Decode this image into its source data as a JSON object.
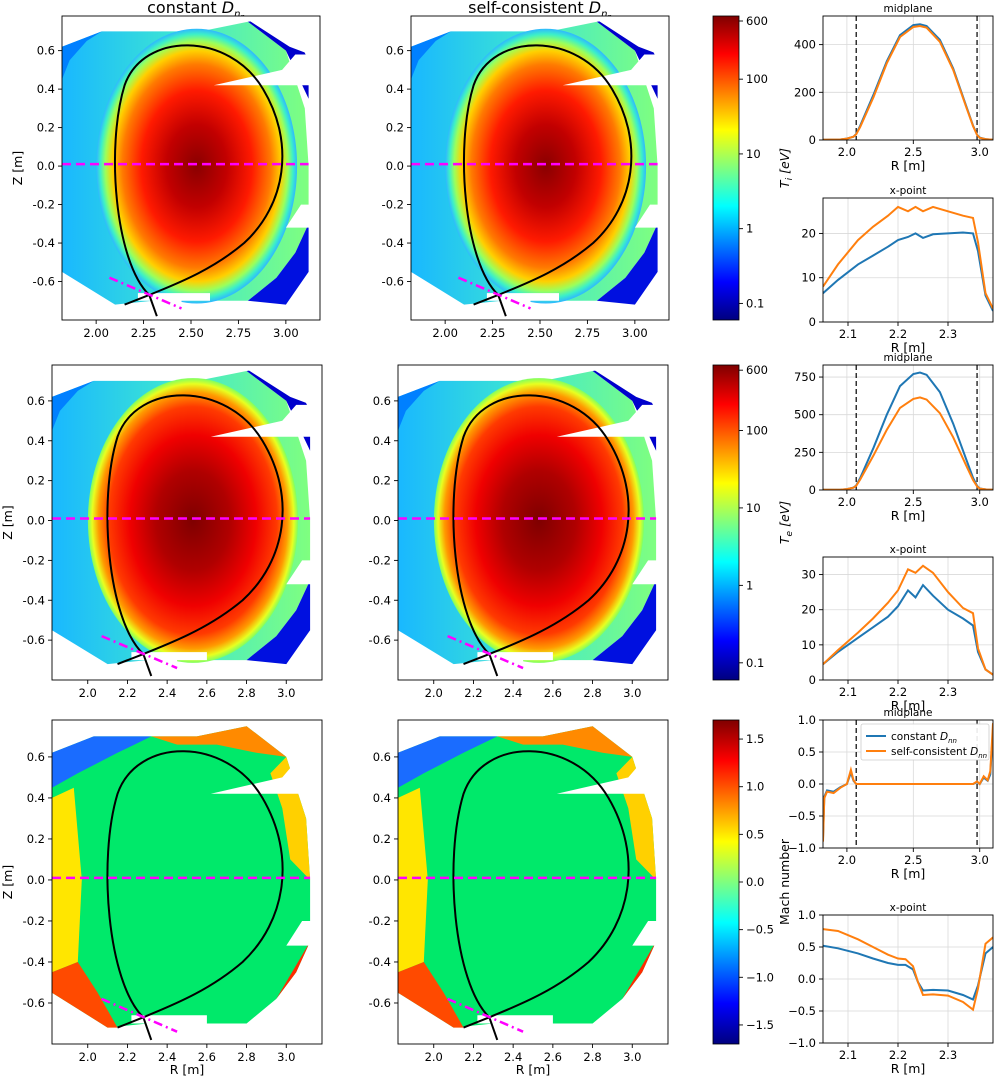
{
  "column_titles": [
    "constant D_nn",
    "self-consistent D_nn"
  ],
  "colors": {
    "constant": "#1f77b4",
    "selfconsistent": "#ff7f0e",
    "separatrix": "#000000",
    "cut_lines": "#ff00ff",
    "grid": "#d9d9d9",
    "cmap": [
      "#00007f",
      "#0000ff",
      "#007fff",
      "#00ffff",
      "#7fff7f",
      "#ffff00",
      "#ff7f00",
      "#ff0000",
      "#7f0000"
    ]
  },
  "chart_data": [
    {
      "type": "heatmap",
      "id": "ti-constant",
      "quantity": "Ti",
      "title": "constant D_nn",
      "xlabel": "",
      "ylabel": "Z [m]",
      "xlim": [
        1.82,
        3.18
      ],
      "ylim": [
        -0.8,
        0.78
      ],
      "xticks": [
        2.0,
        2.25,
        2.5,
        2.75,
        3.0
      ],
      "xticklabels": [
        "2.00",
        "2.25",
        "2.50",
        "2.75",
        "3.00"
      ],
      "yticks": [
        0.6,
        0.4,
        0.2,
        0.0,
        -0.2,
        -0.4,
        -0.6
      ],
      "yticklabels": [
        "0.6",
        "0.4",
        "0.2",
        "0.0",
        "-0.2",
        "-0.4",
        "-0.6"
      ]
    },
    {
      "type": "heatmap",
      "id": "ti-selfconsistent",
      "quantity": "Ti",
      "title": "self-consistent D_nn",
      "xlim": [
        1.82,
        3.18
      ],
      "ylim": [
        -0.8,
        0.78
      ],
      "xticks": [
        2.0,
        2.25,
        2.5,
        2.75,
        3.0
      ],
      "xticklabels": [
        "2.00",
        "2.25",
        "2.50",
        "2.75",
        "3.00"
      ],
      "yticks": [
        0.6,
        0.4,
        0.2,
        0.0,
        -0.2,
        -0.4,
        -0.6
      ],
      "yticklabels": [
        "0.6",
        "0.4",
        "0.2",
        "0.0",
        "-0.2",
        "-0.4",
        "-0.6"
      ]
    },
    {
      "type": "colorbar",
      "id": "ti-colorbar",
      "label": "Ti [eV]",
      "label_main": "T",
      "label_sub": "i",
      "label_unit": " [eV]",
      "scale": "log",
      "range": [
        0.06,
        700
      ],
      "ticks": [
        600,
        100,
        10,
        1,
        0.1
      ],
      "ticklabels": [
        "600",
        "100",
        "10",
        "1",
        "0.1"
      ]
    },
    {
      "type": "line",
      "id": "ti-midplane",
      "title": "midplane",
      "xlabel": "R [m]",
      "xlim": [
        1.82,
        3.1
      ],
      "ylim": [
        0,
        520
      ],
      "xticks": [
        2.0,
        2.5,
        3.0
      ],
      "xticklabels": [
        "2.0",
        "2.5",
        "3.0"
      ],
      "yticks": [
        0,
        200,
        400
      ],
      "yticklabels": [
        "0",
        "200",
        "400"
      ],
      "vlines": [
        2.07,
        2.98
      ],
      "series": [
        {
          "name": "constant D_nn",
          "x": [
            1.82,
            1.95,
            2.0,
            2.05,
            2.07,
            2.1,
            2.2,
            2.3,
            2.4,
            2.5,
            2.55,
            2.6,
            2.7,
            2.8,
            2.9,
            2.95,
            2.98,
            3.0,
            3.05,
            3.1
          ],
          "y": [
            1,
            2,
            6,
            14,
            25,
            60,
            190,
            330,
            440,
            482,
            485,
            478,
            420,
            300,
            140,
            60,
            22,
            10,
            3,
            1
          ]
        },
        {
          "name": "self-consistent D_nn",
          "x": [
            1.82,
            1.95,
            2.0,
            2.05,
            2.07,
            2.1,
            2.2,
            2.3,
            2.4,
            2.5,
            2.55,
            2.6,
            2.7,
            2.8,
            2.9,
            2.95,
            2.98,
            3.0,
            3.05,
            3.1
          ],
          "y": [
            1,
            2,
            6,
            14,
            24,
            55,
            180,
            322,
            432,
            474,
            478,
            471,
            412,
            294,
            136,
            58,
            21,
            9,
            3,
            1
          ]
        }
      ]
    },
    {
      "type": "line",
      "id": "ti-xpoint",
      "title": "x-point",
      "xlabel": "R [m]",
      "xlim": [
        2.05,
        2.39
      ],
      "ylim": [
        0,
        28
      ],
      "xticks": [
        2.1,
        2.2,
        2.3
      ],
      "xticklabels": [
        "2.1",
        "2.2",
        "2.3"
      ],
      "yticks": [
        0,
        10,
        20
      ],
      "yticklabels": [
        "0",
        "10",
        "20"
      ],
      "series": [
        {
          "name": "constant D_nn",
          "x": [
            2.05,
            2.08,
            2.12,
            2.15,
            2.18,
            2.2,
            2.22,
            2.235,
            2.25,
            2.27,
            2.3,
            2.33,
            2.35,
            2.36,
            2.375,
            2.39
          ],
          "y": [
            6.5,
            9.5,
            13.0,
            15.0,
            17.0,
            18.5,
            19.2,
            20.0,
            19.0,
            19.8,
            20.0,
            20.2,
            20.0,
            16.0,
            6.0,
            2.5
          ]
        },
        {
          "name": "self-consistent D_nn",
          "x": [
            2.05,
            2.08,
            2.12,
            2.15,
            2.18,
            2.2,
            2.22,
            2.235,
            2.25,
            2.27,
            2.3,
            2.33,
            2.35,
            2.36,
            2.375,
            2.39
          ],
          "y": [
            8.0,
            13.0,
            18.5,
            21.5,
            24.0,
            26.0,
            25.0,
            26.0,
            25.0,
            26.0,
            25.0,
            24.0,
            23.5,
            18.0,
            6.5,
            3.0
          ]
        }
      ]
    },
    {
      "type": "heatmap",
      "id": "te-constant",
      "quantity": "Te",
      "ylabel": "Z [m]",
      "xlim": [
        1.82,
        3.18
      ],
      "ylim": [
        -0.8,
        0.78
      ],
      "xticks": [
        2.0,
        2.2,
        2.4,
        2.6,
        2.8,
        3.0
      ],
      "xticklabels": [
        "2.0",
        "2.2",
        "2.4",
        "2.6",
        "2.8",
        "3.0"
      ],
      "yticks": [
        0.6,
        0.4,
        0.2,
        0.0,
        -0.2,
        -0.4,
        -0.6
      ],
      "yticklabels": [
        "0.6",
        "0.4",
        "0.2",
        "0.0",
        "-0.2",
        "-0.4",
        "-0.6"
      ]
    },
    {
      "type": "heatmap",
      "id": "te-selfconsistent",
      "quantity": "Te",
      "xlim": [
        1.82,
        3.18
      ],
      "ylim": [
        -0.8,
        0.78
      ],
      "xticks": [
        2.0,
        2.2,
        2.4,
        2.6,
        2.8,
        3.0
      ],
      "xticklabels": [
        "2.0",
        "2.2",
        "2.4",
        "2.6",
        "2.8",
        "3.0"
      ],
      "yticks": [
        0.6,
        0.4,
        0.2,
        0.0,
        -0.2,
        -0.4,
        -0.6
      ],
      "yticklabels": [
        "0.6",
        "0.4",
        "0.2",
        "0.0",
        "-0.2",
        "-0.4",
        "-0.6"
      ]
    },
    {
      "type": "colorbar",
      "id": "te-colorbar",
      "label": "Te [eV]",
      "label_main": "T",
      "label_sub": "e",
      "label_unit": " [eV]",
      "scale": "log",
      "range": [
        0.06,
        700
      ],
      "ticks": [
        600,
        100,
        10,
        1,
        0.1
      ],
      "ticklabels": [
        "600",
        "100",
        "10",
        "1",
        "0.1"
      ]
    },
    {
      "type": "line",
      "id": "te-midplane",
      "title": "midplane",
      "xlabel": "R [m]",
      "xlim": [
        1.82,
        3.1
      ],
      "ylim": [
        0,
        830
      ],
      "xticks": [
        2.0,
        2.5,
        3.0
      ],
      "xticklabels": [
        "2.0",
        "2.5",
        "3.0"
      ],
      "yticks": [
        0,
        250,
        500,
        750
      ],
      "yticklabels": [
        "0",
        "250",
        "500",
        "750"
      ],
      "vlines": [
        2.07,
        2.98
      ],
      "series": [
        {
          "name": "constant D_nn",
          "x": [
            1.82,
            1.95,
            2.0,
            2.05,
            2.07,
            2.1,
            2.2,
            2.3,
            2.4,
            2.5,
            2.55,
            2.6,
            2.7,
            2.8,
            2.9,
            2.95,
            2.98,
            3.0,
            3.05,
            3.1
          ],
          "y": [
            1,
            2,
            6,
            16,
            30,
            80,
            280,
            500,
            690,
            770,
            780,
            765,
            650,
            440,
            200,
            80,
            28,
            10,
            3,
            1
          ]
        },
        {
          "name": "self-consistent D_nn",
          "x": [
            1.82,
            1.95,
            2.0,
            2.05,
            2.07,
            2.1,
            2.2,
            2.3,
            2.4,
            2.5,
            2.55,
            2.6,
            2.7,
            2.8,
            2.9,
            2.95,
            2.98,
            3.0,
            3.05,
            3.1
          ],
          "y": [
            1,
            2,
            6,
            15,
            28,
            70,
            230,
            400,
            545,
            605,
            615,
            600,
            510,
            350,
            160,
            65,
            24,
            9,
            3,
            1
          ]
        }
      ]
    },
    {
      "type": "line",
      "id": "te-xpoint",
      "title": "x-point",
      "xlabel": "R [m]",
      "xlim": [
        2.05,
        2.39
      ],
      "ylim": [
        0,
        35
      ],
      "xticks": [
        2.1,
        2.2,
        2.3
      ],
      "xticklabels": [
        "2.1",
        "2.2",
        "2.3"
      ],
      "yticks": [
        0,
        10,
        20,
        30
      ],
      "yticklabels": [
        "0",
        "10",
        "20",
        "30"
      ],
      "series": [
        {
          "name": "constant D_nn",
          "x": [
            2.05,
            2.08,
            2.12,
            2.15,
            2.18,
            2.2,
            2.22,
            2.235,
            2.25,
            2.27,
            2.3,
            2.33,
            2.35,
            2.36,
            2.375,
            2.39
          ],
          "y": [
            4.5,
            8.0,
            12.0,
            15.0,
            18.0,
            21.0,
            25.5,
            23.5,
            27.0,
            24.0,
            20.0,
            17.5,
            15.5,
            8.0,
            3.0,
            1.5
          ]
        },
        {
          "name": "self-consistent D_nn",
          "x": [
            2.05,
            2.08,
            2.12,
            2.15,
            2.18,
            2.2,
            2.22,
            2.235,
            2.25,
            2.27,
            2.3,
            2.33,
            2.35,
            2.36,
            2.375,
            2.39
          ],
          "y": [
            4.5,
            8.5,
            13.5,
            17.5,
            22.0,
            25.5,
            31.5,
            30.5,
            32.5,
            30.5,
            25.0,
            20.5,
            19.0,
            9.0,
            3.0,
            1.5
          ]
        }
      ]
    },
    {
      "type": "heatmap",
      "id": "mach-constant",
      "quantity": "Mach",
      "xlabel": "R [m]",
      "ylabel": "Z [m]",
      "xlim": [
        1.82,
        3.18
      ],
      "ylim": [
        -0.8,
        0.78
      ],
      "xticks": [
        2.0,
        2.2,
        2.4,
        2.6,
        2.8,
        3.0
      ],
      "xticklabels": [
        "2.0",
        "2.2",
        "2.4",
        "2.6",
        "2.8",
        "3.0"
      ],
      "yticks": [
        0.6,
        0.4,
        0.2,
        0.0,
        -0.2,
        -0.4,
        -0.6
      ],
      "yticklabels": [
        "0.6",
        "0.4",
        "0.2",
        "0.0",
        "-0.2",
        "-0.4",
        "-0.6"
      ]
    },
    {
      "type": "heatmap",
      "id": "mach-selfconsistent",
      "quantity": "Mach",
      "xlabel": "R [m]",
      "xlim": [
        1.82,
        3.18
      ],
      "ylim": [
        -0.8,
        0.78
      ],
      "xticks": [
        2.0,
        2.2,
        2.4,
        2.6,
        2.8,
        3.0
      ],
      "xticklabels": [
        "2.0",
        "2.2",
        "2.4",
        "2.6",
        "2.8",
        "3.0"
      ],
      "yticks": [
        0.6,
        0.4,
        0.2,
        0.0,
        -0.2,
        -0.4,
        -0.6
      ],
      "yticklabels": [
        "0.6",
        "0.4",
        "0.2",
        "0.0",
        "-0.2",
        "-0.4",
        "-0.6"
      ]
    },
    {
      "type": "colorbar",
      "id": "mach-colorbar",
      "label": "Mach number",
      "scale": "linear",
      "range": [
        -1.7,
        1.7
      ],
      "ticks": [
        1.5,
        1.0,
        0.5,
        0.0,
        -0.5,
        -1.0,
        -1.5
      ],
      "ticklabels": [
        "1.5",
        "1.0",
        "0.5",
        "0.0",
        "−0.5",
        "−1.0",
        "−1.5"
      ]
    },
    {
      "type": "line",
      "id": "mach-midplane",
      "title": "midplane",
      "xlabel": "R [m]",
      "xlim": [
        1.82,
        3.1
      ],
      "ylim": [
        -1.0,
        1.0
      ],
      "xticks": [
        2.0,
        2.5,
        3.0
      ],
      "xticklabels": [
        "2.0",
        "2.5",
        "3.0"
      ],
      "yticks": [
        1.0,
        0.5,
        0.0,
        -0.5,
        -1.0
      ],
      "yticklabels": [
        "1.0",
        "0.5",
        "0.0",
        "−0.5",
        "−1.0"
      ],
      "vlines": [
        2.07,
        2.98
      ],
      "legend": "top-right",
      "legend_entries": [
        "constant D_nn",
        "self-consistent D_nn"
      ],
      "series": [
        {
          "name": "constant D_nn",
          "x": [
            1.82,
            1.83,
            1.85,
            1.9,
            1.95,
            2.0,
            2.03,
            2.05,
            2.07,
            2.1,
            2.2,
            2.5,
            2.8,
            2.95,
            2.98,
            3.0,
            3.03,
            3.06,
            3.08,
            3.1
          ],
          "y": [
            -0.85,
            -0.2,
            -0.1,
            -0.12,
            -0.05,
            0.0,
            0.18,
            0.05,
            0.0,
            0.0,
            0.0,
            0.0,
            0.0,
            0.0,
            0.03,
            0.0,
            0.1,
            0.05,
            0.15,
            0.85
          ]
        },
        {
          "name": "self-consistent D_nn",
          "x": [
            1.82,
            1.83,
            1.85,
            1.9,
            1.95,
            2.0,
            2.03,
            2.05,
            2.07,
            2.1,
            2.2,
            2.5,
            2.8,
            2.95,
            2.98,
            3.0,
            3.03,
            3.06,
            3.08,
            3.1
          ],
          "y": [
            -0.9,
            -0.22,
            -0.12,
            -0.14,
            -0.06,
            0.0,
            0.22,
            0.06,
            0.0,
            0.0,
            0.0,
            0.0,
            0.0,
            0.0,
            0.04,
            0.0,
            0.12,
            0.06,
            0.2,
            0.95
          ]
        }
      ]
    },
    {
      "type": "line",
      "id": "mach-xpoint",
      "title": "x-point",
      "xlabel": "R [m]",
      "xlim": [
        2.05,
        2.39
      ],
      "ylim": [
        -1.0,
        1.0
      ],
      "xticks": [
        2.1,
        2.2,
        2.3
      ],
      "xticklabels": [
        "2.1",
        "2.2",
        "2.3"
      ],
      "yticks": [
        1.0,
        0.5,
        0.0,
        -0.5,
        -1.0
      ],
      "yticklabels": [
        "1.0",
        "0.5",
        "0.0",
        "−0.5",
        "−1.0"
      ],
      "series": [
        {
          "name": "constant D_nn",
          "x": [
            2.05,
            2.08,
            2.12,
            2.15,
            2.18,
            2.2,
            2.215,
            2.23,
            2.24,
            2.25,
            2.27,
            2.3,
            2.33,
            2.35,
            2.36,
            2.375,
            2.39
          ],
          "y": [
            0.52,
            0.48,
            0.4,
            0.32,
            0.25,
            0.22,
            0.22,
            0.15,
            -0.05,
            -0.18,
            -0.17,
            -0.18,
            -0.25,
            -0.32,
            -0.1,
            0.4,
            0.5
          ]
        },
        {
          "name": "self-consistent D_nn",
          "x": [
            2.05,
            2.08,
            2.12,
            2.15,
            2.18,
            2.2,
            2.215,
            2.23,
            2.24,
            2.25,
            2.27,
            2.3,
            2.33,
            2.35,
            2.36,
            2.375,
            2.39
          ],
          "y": [
            0.78,
            0.75,
            0.62,
            0.5,
            0.38,
            0.32,
            0.31,
            0.2,
            -0.05,
            -0.25,
            -0.24,
            -0.26,
            -0.36,
            -0.48,
            -0.15,
            0.55,
            0.65
          ]
        }
      ]
    }
  ]
}
